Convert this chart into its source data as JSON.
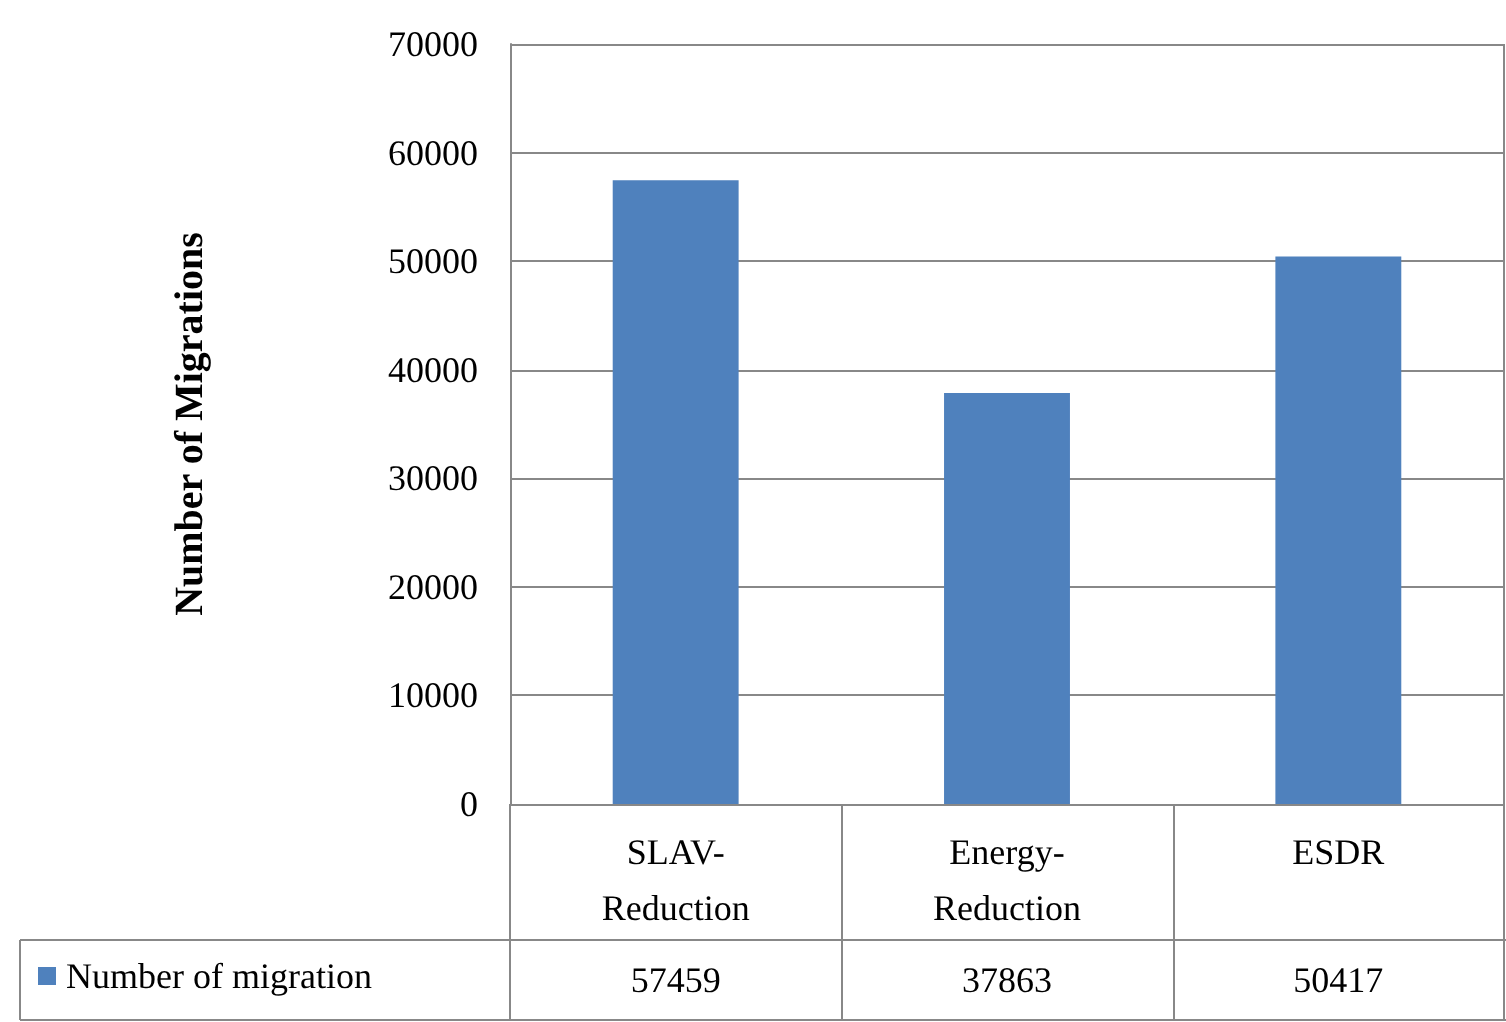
{
  "chart_data": {
    "type": "bar",
    "ylabel": "Number of Migrations",
    "categories": [
      "SLAV-Reduction",
      "Energy-Reduction",
      "ESDR"
    ],
    "series": [
      {
        "name": "Number of migration",
        "color": "#4f81bd",
        "values": [
          57459,
          37863,
          50417
        ]
      }
    ],
    "ylim": [
      0,
      70000
    ],
    "yticks": [
      0,
      10000,
      20000,
      30000,
      40000,
      50000,
      60000,
      70000
    ],
    "grid": "y",
    "legend": "bottom",
    "data_labels": true
  }
}
